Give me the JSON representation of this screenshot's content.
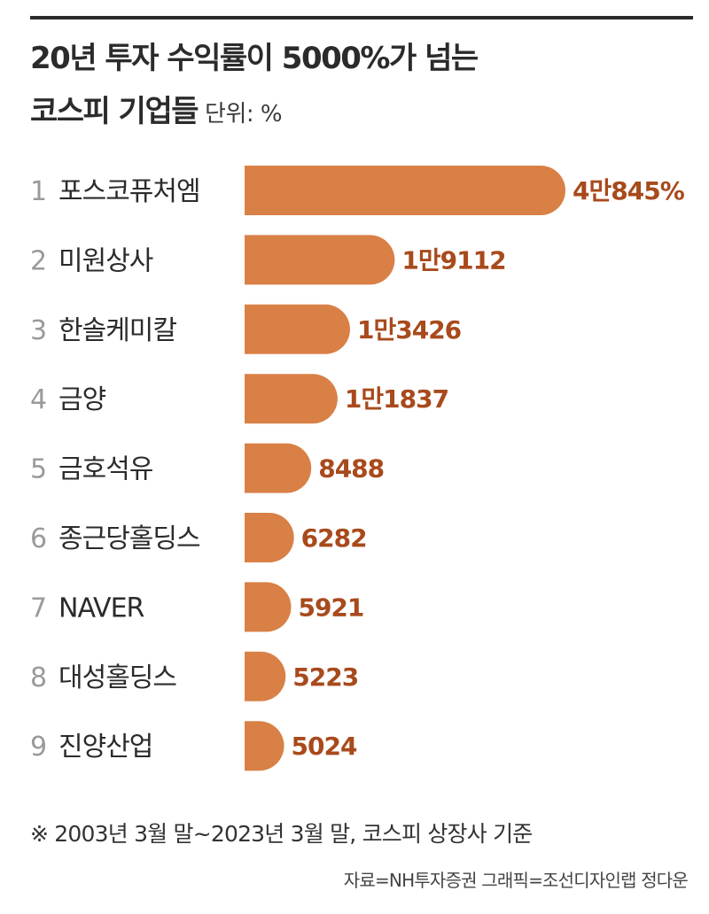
{
  "title_line1": "20년 투자 수익률이 5000%가 넘는",
  "title_line2": "코스피 기업들",
  "unit_label": "단위: %",
  "note": "※ 2003년 3월 말~2023년 3월 말, 코스피 상장사 기준",
  "source": "자료=NH투자증권 그래픽=조선디자인랩 정다운",
  "colors": {
    "bar": "#D98046",
    "value_text": "#A84A1C",
    "rank_text": "#9A9A9A",
    "label_text": "#2B2B2B"
  },
  "chart_data": {
    "type": "bar",
    "orientation": "horizontal",
    "title": "20년 투자 수익률이 5000%가 넘는 코스피 기업들",
    "unit": "%",
    "ranks": [
      "1",
      "2",
      "3",
      "4",
      "5",
      "6",
      "7",
      "8",
      "9"
    ],
    "categories": [
      "포스코퓨처엠",
      "미원상사",
      "한솔케미칼",
      "금양",
      "금호석유",
      "종근당홀딩스",
      "NAVER",
      "대성홀딩스",
      "진양산업"
    ],
    "values": [
      40845,
      19112,
      13426,
      11837,
      8488,
      6282,
      5921,
      5223,
      5024
    ],
    "value_labels": [
      "4만845%",
      "1만9112",
      "1만3426",
      "1만1837",
      "8488",
      "6282",
      "5921",
      "5223",
      "5024"
    ]
  }
}
